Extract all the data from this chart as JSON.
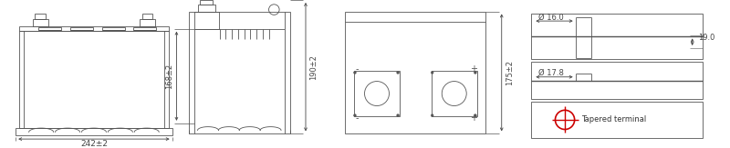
{
  "bg_color": "#ffffff",
  "line_color": "#555555",
  "dim_color": "#444444",
  "dim_242": "242±2",
  "dim_168": "168±2",
  "dim_190": "190±2",
  "dim_175": "175±2",
  "dim_16": "Ø 16.0",
  "dim_178": "Ø 17.8",
  "dim_19": "19.0",
  "tapered": "Tapered terminal"
}
